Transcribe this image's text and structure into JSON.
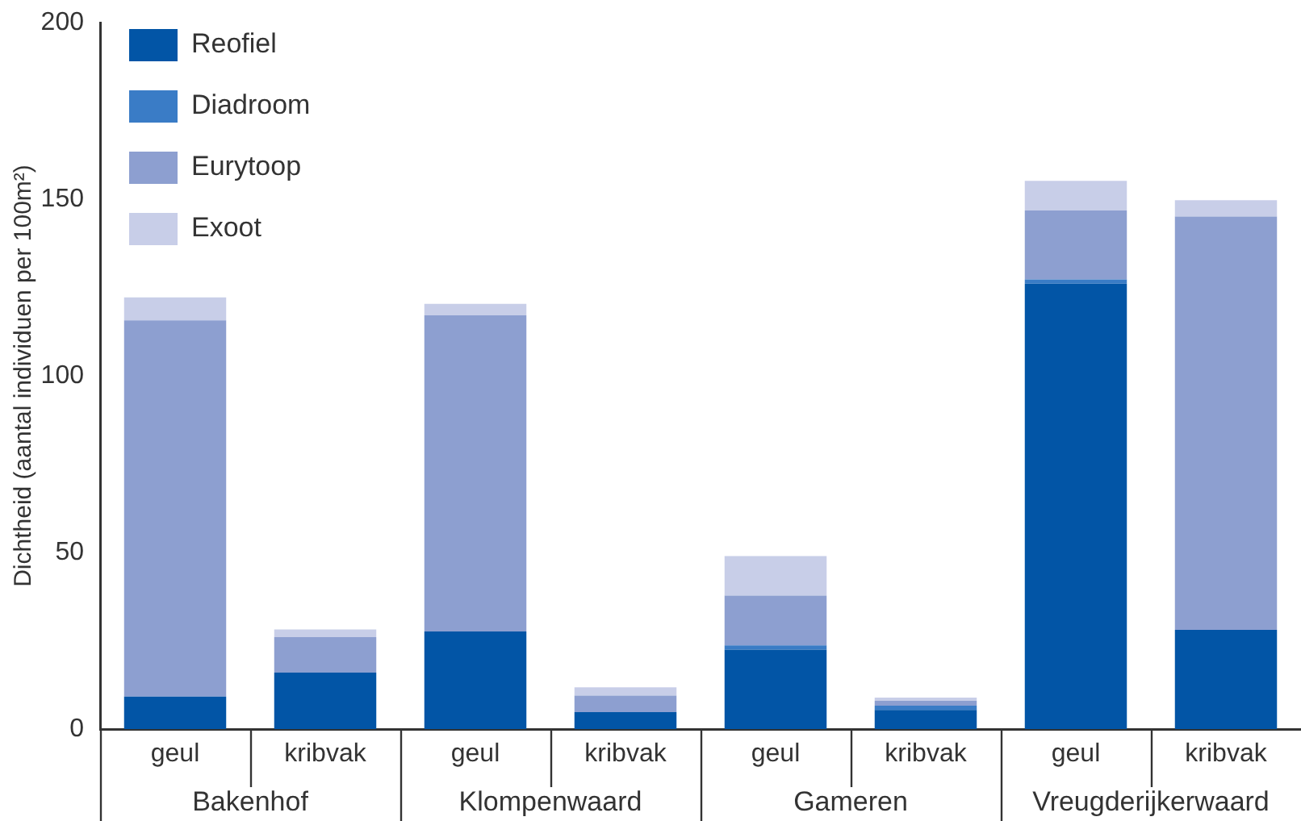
{
  "chart_data": {
    "type": "bar",
    "stacked": true,
    "ylabel": "Dichtheid (aantal individuen per 100m²)",
    "categories": [
      "geul",
      "kribvak",
      "geul",
      "kribvak",
      "geul",
      "kribvak",
      "geul",
      "kribvak"
    ],
    "annotations": [
      "Bakenhof",
      "Klompenwaard",
      "Gameren",
      "Vreugderijkerwaard"
    ],
    "series": [
      {
        "name": "Reofiel",
        "color": "#0255a6",
        "values": [
          9.2,
          16,
          27.6,
          4.8,
          22.5,
          5.4,
          126.1,
          28.1
        ]
      },
      {
        "name": "Diadroom",
        "color": "#3a7cc6",
        "values": [
          0,
          0,
          0,
          0,
          1.2,
          1.2,
          1.2,
          0
        ]
      },
      {
        "name": "Eurytoop",
        "color": "#8d9fd0",
        "values": [
          106.5,
          10,
          89.5,
          4.7,
          14.1,
          1.4,
          19.5,
          117
        ]
      },
      {
        "name": "Exoot",
        "color": "#c8cee8",
        "values": [
          6.5,
          2.2,
          3.3,
          2.3,
          11.2,
          0.9,
          8.4,
          4.6
        ]
      }
    ],
    "ylim": [
      0,
      200
    ],
    "yticks": [
      0,
      50,
      100,
      150,
      200
    ],
    "grid": false,
    "legend": "top left"
  }
}
